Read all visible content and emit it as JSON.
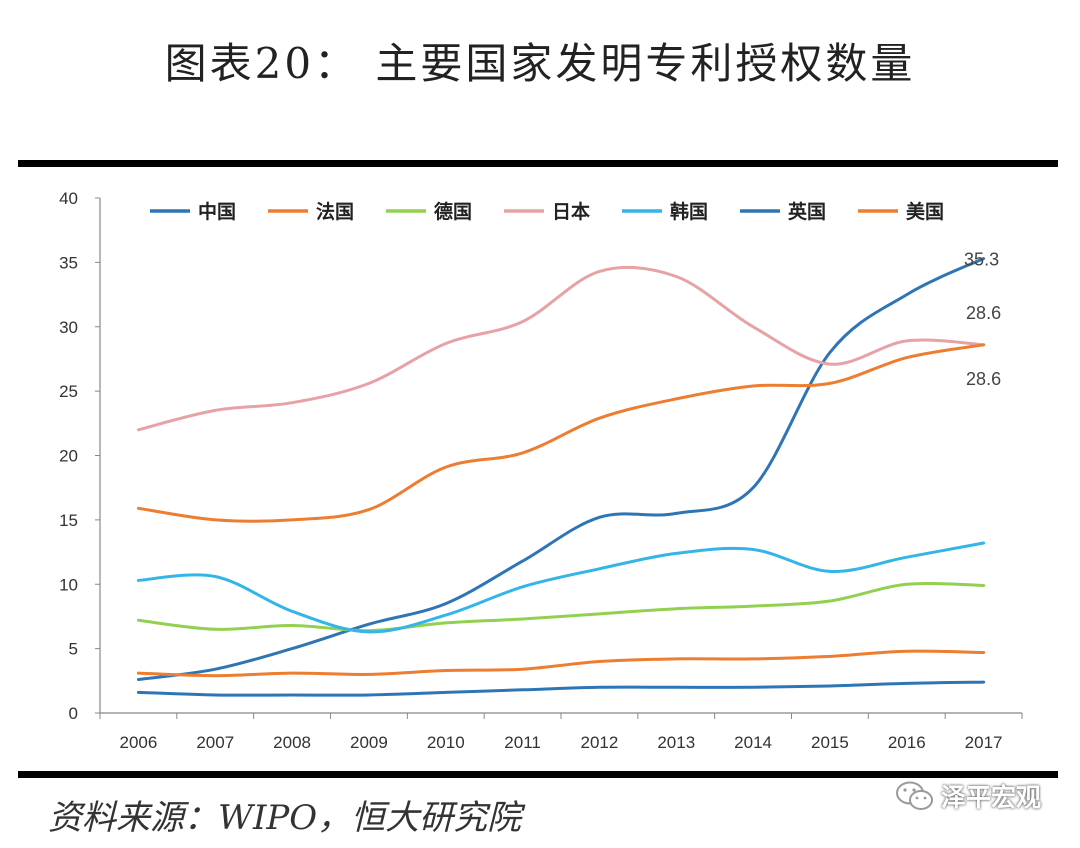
{
  "title": "图表20： 主要国家发明专利授权数量",
  "source": "资料来源：WIPO，恒大研究院",
  "watermark": "泽平宏观",
  "chart_data": {
    "type": "line",
    "title": "图表20： 主要国家发明专利授权数量",
    "xlabel": "",
    "ylabel": "",
    "ylim": [
      0,
      40
    ],
    "yticks": [
      0,
      5,
      10,
      15,
      20,
      25,
      30,
      35,
      40
    ],
    "categories": [
      "2006",
      "2007",
      "2008",
      "2009",
      "2010",
      "2011",
      "2012",
      "2013",
      "2014",
      "2015",
      "2016",
      "2017"
    ],
    "legend_position": "top",
    "grid": false,
    "series": [
      {
        "name": "中国",
        "color": "#2E75B6",
        "values": [
          2.6,
          3.4,
          5.0,
          6.9,
          8.5,
          11.8,
          15.2,
          15.5,
          17.5,
          28.0,
          32.5,
          35.3
        ]
      },
      {
        "name": "法国",
        "color": "#ED7D31",
        "values": [
          3.1,
          2.9,
          3.1,
          3.0,
          3.3,
          3.4,
          4.0,
          4.2,
          4.2,
          4.4,
          4.8,
          4.7
        ]
      },
      {
        "name": "德国",
        "color": "#92D050",
        "values": [
          7.2,
          6.5,
          6.8,
          6.4,
          7.0,
          7.3,
          7.7,
          8.1,
          8.3,
          8.7,
          10.0,
          9.9
        ]
      },
      {
        "name": "日本",
        "color": "#E7A2A6",
        "values": [
          22.0,
          23.5,
          24.1,
          25.6,
          28.7,
          30.4,
          34.3,
          33.9,
          30.0,
          27.1,
          28.9,
          28.6
        ]
      },
      {
        "name": "韩国",
        "color": "#33B5E8",
        "values": [
          10.3,
          10.6,
          7.9,
          6.3,
          7.6,
          9.8,
          11.2,
          12.4,
          12.7,
          11.0,
          12.1,
          13.2
        ]
      },
      {
        "name": "英国",
        "color": "#2E75B6",
        "values": [
          1.6,
          1.4,
          1.4,
          1.4,
          1.6,
          1.8,
          2.0,
          2.0,
          2.0,
          2.1,
          2.3,
          2.4
        ]
      },
      {
        "name": "美国",
        "color": "#ED7D31",
        "values": [
          15.9,
          15.0,
          15.0,
          15.8,
          19.1,
          20.2,
          22.9,
          24.4,
          25.4,
          25.6,
          27.6,
          28.6
        ]
      }
    ],
    "annotations": [
      {
        "text": "35.3",
        "x": "2017",
        "y": 35.3
      },
      {
        "text": "28.6",
        "x": "2017",
        "y": 28.6,
        "position": "above"
      },
      {
        "text": "28.6",
        "x": "2017",
        "y": 28.6,
        "position": "below"
      }
    ]
  }
}
